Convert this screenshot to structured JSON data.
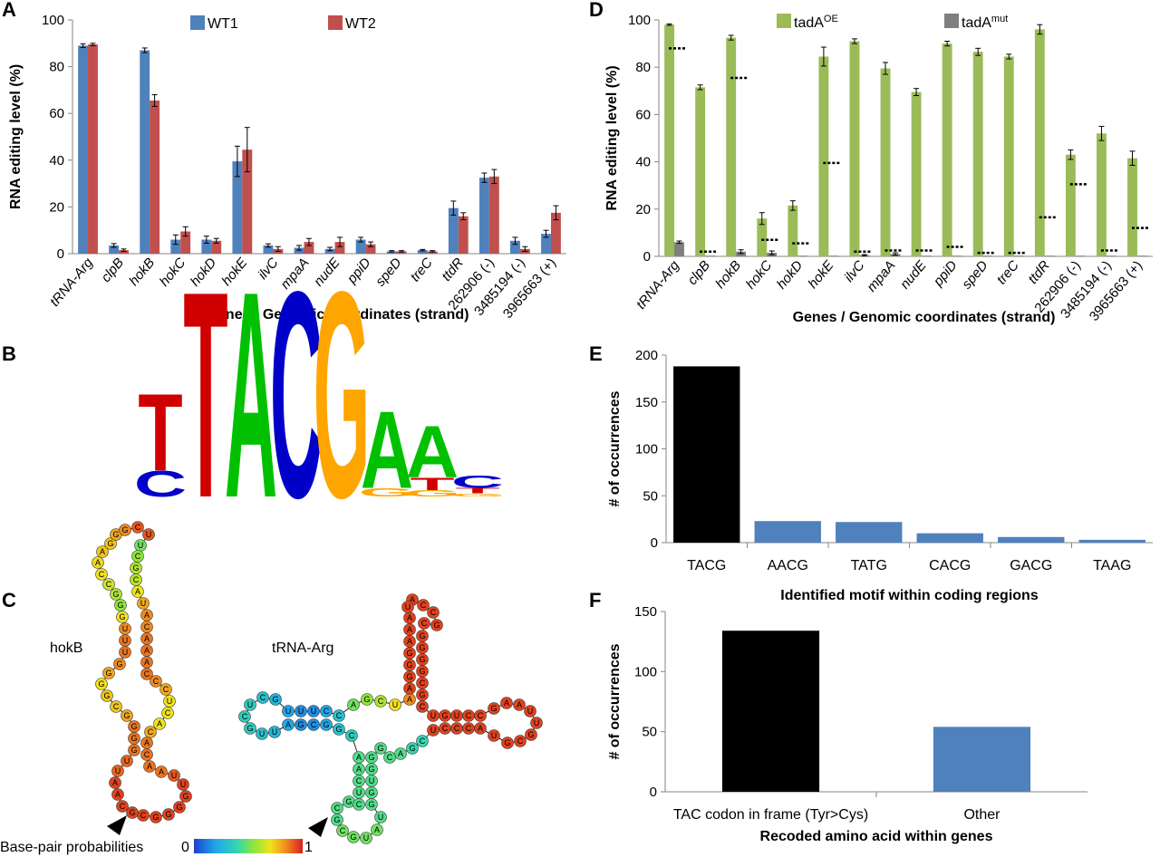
{
  "panels": {
    "a": "A",
    "b": "B",
    "c": "C",
    "d": "D",
    "e": "E",
    "f": "F"
  },
  "colors": {
    "wt1": "#4f81bd",
    "wt2": "#c0504d",
    "oe": "#9bbb59",
    "mut": "#7f7f7f",
    "black": "#000000",
    "blue": "#4f81bd"
  },
  "chart_data": [
    {
      "id": "A",
      "type": "bar",
      "ylabel": "RNA editing level (%)",
      "xlabel": "Genes / Genomic coordinates (strand)",
      "ylim": [
        0,
        100
      ],
      "yticks": [
        0,
        20,
        40,
        60,
        80,
        100
      ],
      "legend_position": "top",
      "categories": [
        "tRNA-Arg",
        "clpB",
        "hokB",
        "hokC",
        "hokD",
        "hokE",
        "ilvC",
        "mpaA",
        "nudE",
        "ppiD",
        "speD",
        "treC",
        "ttdR",
        "262906 (-)",
        "3485194 (-)",
        "3965663 (+)"
      ],
      "italic_categories": 13,
      "series": [
        {
          "name": "WT1",
          "values": [
            89,
            3.5,
            87,
            6,
            6,
            39.5,
            3.5,
            2.5,
            2,
            6,
            1,
            1.5,
            19.5,
            32.5,
            5.5,
            8.5
          ],
          "errors": [
            0.8,
            0.8,
            1,
            2,
            1.5,
            6.5,
            0.7,
            1,
            0.7,
            1,
            0.3,
            0.3,
            3,
            2,
            1.5,
            1.5
          ]
        },
        {
          "name": "WT2",
          "values": [
            89.5,
            1.5,
            65.5,
            9.5,
            5.5,
            44.5,
            2,
            5,
            5,
            4,
            1,
            1,
            16,
            33,
            2,
            17.5
          ],
          "errors": [
            0.5,
            0.5,
            2.5,
            2,
            1,
            9.5,
            1,
            1.5,
            2,
            1,
            0.3,
            0.3,
            1.5,
            3,
            1,
            3
          ]
        }
      ]
    },
    {
      "id": "D",
      "type": "bar",
      "ylabel": "RNA editing level (%)",
      "xlabel": "Genes / Genomic coordinates (strand)",
      "ylim": [
        0,
        100
      ],
      "yticks": [
        0,
        20,
        40,
        60,
        80,
        100
      ],
      "legend_position": "top",
      "categories": [
        "tRNA-Arg",
        "clpB",
        "hokB",
        "hokC",
        "hokD",
        "hokE",
        "ilvC",
        "mpaA",
        "nudE",
        "ppiD",
        "speD",
        "treC",
        "ttdR",
        "262906 (-)",
        "3485194 (-)",
        "3965663 (+)"
      ],
      "italic_categories": 13,
      "series": [
        {
          "name": "tadA",
          "name_sup": "OE",
          "values": [
            98,
            71.5,
            92.5,
            16,
            21.5,
            84.5,
            91,
            79.5,
            69.5,
            90,
            86.5,
            84.5,
            96,
            43,
            52,
            41.5
          ],
          "errors": [
            0.3,
            1,
            1,
            2.5,
            2,
            4,
            1,
            2.5,
            1.5,
            1,
            1.5,
            1,
            2,
            2,
            3,
            3
          ]
        },
        {
          "name": "tadA",
          "name_sup": "mut",
          "values": [
            6,
            0.3,
            2,
            1.5,
            0.3,
            0.3,
            0.5,
            1,
            0.3,
            0.3,
            0.3,
            0.3,
            0.3,
            0.3,
            0.3,
            0.3
          ],
          "errors": [
            0.5,
            0,
            0.8,
            0.8,
            0,
            0,
            0.3,
            0.5,
            0,
            0,
            0,
            0,
            0,
            0,
            0,
            0
          ]
        }
      ],
      "dotted_reference": [
        88,
        2,
        75.5,
        7,
        5.5,
        39.5,
        2,
        2.5,
        2.5,
        4,
        1.5,
        1.5,
        16.5,
        30.5,
        2.5,
        12
      ]
    },
    {
      "id": "E",
      "type": "bar",
      "ylabel": "# of occurrences",
      "xlabel": "Identified motif within coding regions",
      "ylim": [
        0,
        200
      ],
      "yticks": [
        0,
        50,
        100,
        150,
        200
      ],
      "categories": [
        "TACG",
        "AACG",
        "TATG",
        "CACG",
        "GACG",
        "TAAG"
      ],
      "values": [
        188,
        23,
        22,
        10,
        6,
        3
      ]
    },
    {
      "id": "F",
      "type": "bar",
      "ylabel": "# of occurrences",
      "xlabel": "Recoded amino acid within genes",
      "ylim": [
        0,
        150
      ],
      "yticks": [
        0,
        50,
        100,
        150
      ],
      "categories": [
        "TAC codon in frame (Tyr>Cys)",
        "Other"
      ],
      "values": [
        134,
        54
      ]
    }
  ],
  "logo": {
    "positions": [
      [
        [
          "C",
          0.25
        ],
        [
          "T",
          0.75
        ]
      ],
      [
        [
          "T",
          2.0
        ]
      ],
      [
        [
          "A",
          2.0
        ]
      ],
      [
        [
          "C",
          2.0
        ]
      ],
      [
        [
          "G",
          2.0
        ]
      ],
      [
        [
          "G",
          0.08
        ],
        [
          "A",
          0.75
        ]
      ],
      [
        [
          "G",
          0.06
        ],
        [
          "T",
          0.12
        ],
        [
          "A",
          0.5
        ]
      ],
      [
        [
          "G",
          0.03
        ],
        [
          "T",
          0.05
        ],
        [
          "C",
          0.12
        ]
      ]
    ]
  },
  "structures": {
    "hokb_label": "hokB",
    "trna_label": "tRNA-Arg",
    "scale_label": "Base-pair probabilities",
    "scale_min": "0",
    "scale_max": "1",
    "hokb_nts": [
      "C",
      "A",
      "A",
      "U",
      "U",
      "G",
      "G",
      "G",
      "G",
      "C",
      "G",
      "G",
      "G",
      "G",
      "U",
      "U",
      "U",
      "G",
      "G",
      "G",
      "C",
      "C",
      "A",
      "A",
      "G",
      "G",
      "G",
      "C",
      "U",
      "U",
      "C",
      "G",
      "C",
      "A",
      "U",
      "A",
      "C",
      "A",
      "A",
      "A",
      "C",
      "C",
      "C",
      "U",
      "C",
      "A",
      "C",
      "A"
    ],
    "trna_nts": [
      "A",
      "C",
      "C",
      "G",
      "C",
      "G",
      "G",
      "G",
      "G",
      "C",
      "G",
      "C",
      "U",
      "G",
      "U",
      "C",
      "C",
      "G",
      "A",
      "A",
      "U",
      "U",
      "G",
      "C",
      "G",
      "U",
      "A",
      "C",
      "C",
      "C",
      "U",
      "C",
      "G",
      "A",
      "C",
      "G",
      "G",
      "G",
      "U",
      "G",
      "G",
      "U",
      "A",
      "U",
      "G",
      "C",
      "G",
      "C",
      "G",
      "C",
      "U",
      "C",
      "A",
      "A",
      "C",
      "G",
      "G",
      "C",
      "G",
      "A",
      "U",
      "U",
      "G",
      "C",
      "U",
      "C",
      "G",
      "U",
      "U",
      "U",
      "C",
      "C",
      "A",
      "G",
      "C",
      "U",
      "A",
      "A",
      "G",
      "G",
      "G",
      "A",
      "A",
      "A",
      "U",
      "C",
      "C",
      "A",
      "C",
      "G",
      "G",
      "C"
    ]
  }
}
